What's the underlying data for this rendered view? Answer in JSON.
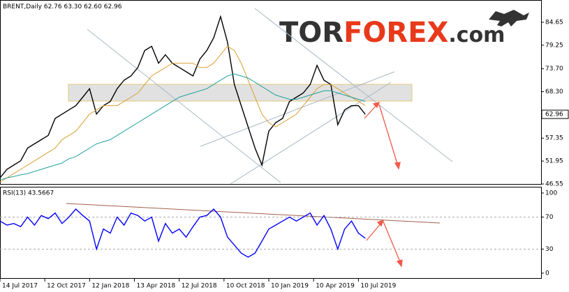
{
  "watermark": [
    "TOR",
    "FOREX",
    ".com"
  ],
  "chart_data": [
    {
      "type": "line",
      "title": "BRENT,Daily",
      "ohlc": "62.76 63.30 62.60 62.96",
      "xlim": [
        0,
        78.5
      ],
      "xticks": [
        {
          "value": 0,
          "label": "14 Jul 2017"
        },
        {
          "value": 6.5,
          "label": "12 Oct 2017"
        },
        {
          "value": 13,
          "label": "12 Jan 2018"
        },
        {
          "value": 19.5,
          "label": "13 Apr 2018"
        },
        {
          "value": 26,
          "label": "12 Jul 2018"
        },
        {
          "value": 32.5,
          "label": "10 Oct 2018"
        },
        {
          "value": 39,
          "label": "10 Jan 2019"
        },
        {
          "value": 45.5,
          "label": "10 Apr 2019"
        },
        {
          "value": 52,
          "label": "10 Jul 2019"
        }
      ],
      "ylim": [
        46.55,
        89.9
      ],
      "yticks": [
        84.65,
        79.25,
        {
          "value": 73.7,
          "label": "73.70"
        },
        {
          "value": 68.3,
          "label": "68.30"
        },
        57.35,
        51.95,
        46.55
      ],
      "last_price": 62.96,
      "series": [
        {
          "color": "#000000",
          "values": [
            48,
            50,
            51,
            52,
            55,
            56,
            57,
            58,
            62,
            63,
            64,
            65,
            67,
            69,
            63,
            65,
            66,
            69,
            71,
            72,
            74,
            78,
            79,
            75,
            77,
            75,
            74,
            73,
            72,
            76,
            78,
            81,
            86,
            80,
            70,
            65,
            60,
            55,
            51,
            59,
            61,
            62,
            66,
            67,
            68,
            70,
            74.5,
            71,
            70,
            60.5,
            64,
            65,
            65,
            62.96
          ]
        },
        {
          "color": "#d9a032",
          "values": [
            47,
            48,
            49,
            50,
            51,
            52,
            53,
            54,
            55,
            57,
            58,
            59,
            61,
            63,
            64,
            65,
            65,
            65,
            66,
            67,
            68,
            70,
            72,
            73,
            74,
            75,
            75,
            75,
            75,
            74,
            74,
            75,
            77,
            79,
            78,
            75,
            71,
            67,
            63,
            61,
            60,
            61,
            62,
            63,
            65,
            67,
            69,
            70,
            70,
            69,
            68,
            67,
            66,
            65
          ]
        },
        {
          "color": "#20a0a0",
          "values": [
            47.5,
            48,
            48.3,
            48.7,
            49,
            49.5,
            50,
            50.5,
            51,
            51.5,
            52.5,
            53,
            54,
            55,
            56,
            56.5,
            57,
            58,
            59,
            60,
            61,
            62,
            63,
            64,
            65,
            66,
            67,
            67.5,
            68,
            68.5,
            69,
            70,
            71,
            72,
            72.5,
            72,
            71.5,
            70.5,
            69.5,
            68.5,
            67.5,
            67,
            66.5,
            66.5,
            67,
            67.5,
            68,
            68.5,
            68.5,
            68,
            67.5,
            67,
            66.5,
            66
          ]
        }
      ]
    },
    {
      "type": "line",
      "title": "RSI(13) 43.5667",
      "xlim": [
        0,
        78.5
      ],
      "ylim": [
        -7,
        107.8
      ],
      "yticks": [
        100,
        70,
        30,
        0
      ],
      "levels": [
        70,
        30
      ],
      "series": [
        {
          "color": "#0000ff",
          "values": [
            65,
            60,
            62,
            58,
            70,
            60,
            72,
            68,
            75,
            62,
            70,
            80,
            72,
            65,
            30,
            55,
            50,
            70,
            60,
            75,
            72,
            65,
            70,
            40,
            62,
            50,
            55,
            45,
            58,
            70,
            72,
            80,
            70,
            45,
            35,
            25,
            20,
            25,
            40,
            55,
            60,
            65,
            70,
            65,
            70,
            75,
            60,
            72,
            55,
            30,
            55,
            65,
            50,
            43.57
          ]
        }
      ]
    }
  ]
}
